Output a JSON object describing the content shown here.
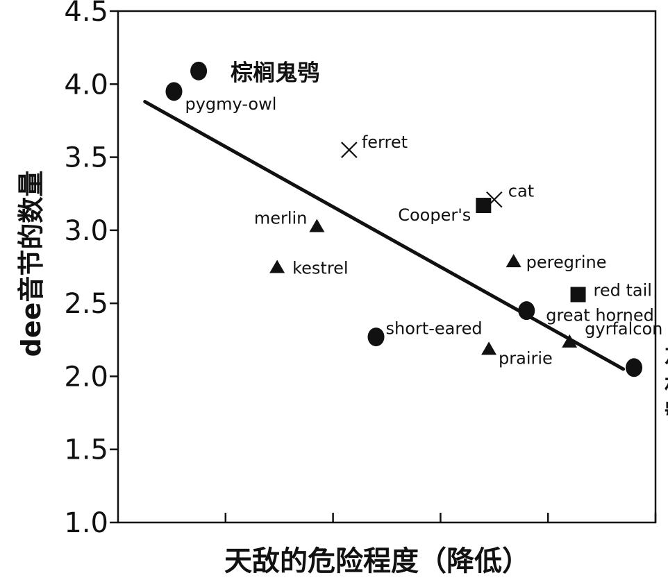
{
  "chart_data": {
    "type": "scatter",
    "title": "",
    "xlabel": "天敌的危险程度（降低）",
    "ylabel": "dee音节的数量",
    "xlim": [
      0,
      5
    ],
    "ylim": [
      1.0,
      4.5
    ],
    "yticks": [
      "1.0",
      "1.5",
      "2.0",
      "2.5",
      "3.0",
      "3.5",
      "4.0",
      "4.5"
    ],
    "xticks": [
      1,
      2,
      3,
      4,
      5
    ],
    "x_tick_labels_shown": false,
    "trendline": {
      "x1": 0.25,
      "y1": 3.88,
      "x2": 4.7,
      "y2": 2.05
    },
    "points": [
      {
        "label": "棕榈鬼鸮",
        "x": 0.75,
        "y": 4.09,
        "marker": "circle",
        "emphasis": true
      },
      {
        "label": "pygmy-owl",
        "x": 0.52,
        "y": 3.95,
        "marker": "circle"
      },
      {
        "label": "ferret",
        "x": 2.15,
        "y": 3.55,
        "marker": "x"
      },
      {
        "label": "cat",
        "x": 3.5,
        "y": 3.21,
        "marker": "x"
      },
      {
        "label": "Cooper's",
        "x": 3.4,
        "y": 3.17,
        "marker": "square"
      },
      {
        "label": "merlin",
        "x": 1.85,
        "y": 3.03,
        "marker": "triangle"
      },
      {
        "label": "kestrel",
        "x": 1.48,
        "y": 2.75,
        "marker": "triangle"
      },
      {
        "label": "peregrine",
        "x": 3.68,
        "y": 2.79,
        "marker": "triangle"
      },
      {
        "label": "red tail",
        "x": 4.28,
        "y": 2.56,
        "marker": "square"
      },
      {
        "label": "great horned",
        "x": 3.8,
        "y": 2.45,
        "marker": "circle"
      },
      {
        "label": "gyrfalcon",
        "x": 4.2,
        "y": 2.24,
        "marker": "triangle"
      },
      {
        "label": "short-eared",
        "x": 2.4,
        "y": 2.27,
        "marker": "circle"
      },
      {
        "label": "prairie",
        "x": 3.45,
        "y": 2.19,
        "marker": "triangle"
      },
      {
        "label": "灰林鸮",
        "x": 4.8,
        "y": 2.06,
        "marker": "circle",
        "emphasis": true
      }
    ]
  }
}
